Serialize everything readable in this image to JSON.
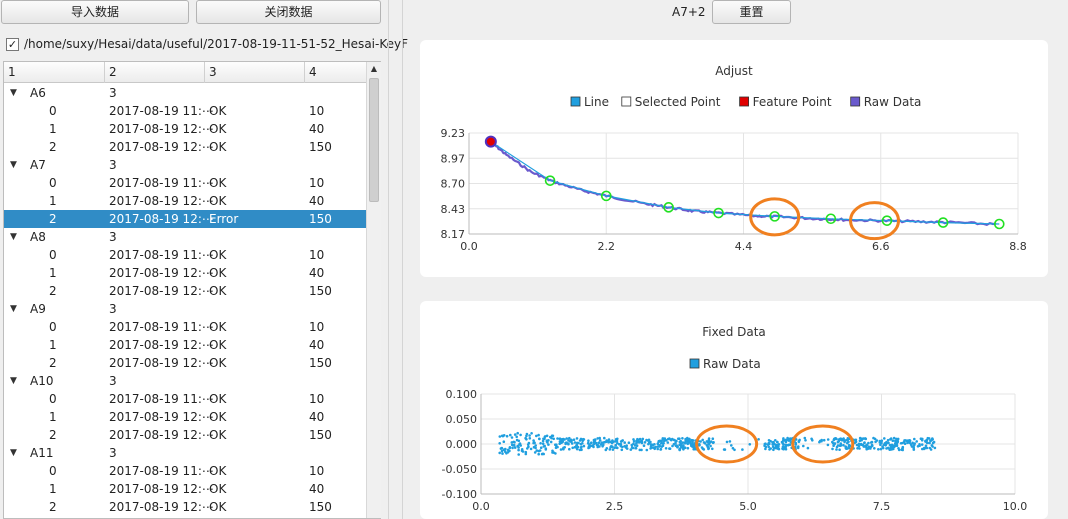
{
  "toolbar": {
    "import_label": "导入数据",
    "close_label": "关闭数据"
  },
  "file": {
    "checked_mark": "✓",
    "path": "/home/suxy/Hesai/data/useful/2017-08-19-11-51-52_Hesai-KeyF"
  },
  "tree": {
    "headers": [
      "1",
      "2",
      "3",
      "4"
    ],
    "rows": [
      {
        "level": 0,
        "c1": "A6",
        "c2": "3"
      },
      {
        "level": 1,
        "c1": "0",
        "c2": "2017-08-19 11:⋯",
        "c3": "OK",
        "c4": "10"
      },
      {
        "level": 1,
        "c1": "1",
        "c2": "2017-08-19 12:⋯",
        "c3": "OK",
        "c4": "40"
      },
      {
        "level": 1,
        "c1": "2",
        "c2": "2017-08-19 12:⋯",
        "c3": "OK",
        "c4": "150"
      },
      {
        "level": 0,
        "c1": "A7",
        "c2": "3"
      },
      {
        "level": 1,
        "c1": "0",
        "c2": "2017-08-19 11:⋯",
        "c3": "OK",
        "c4": "10"
      },
      {
        "level": 1,
        "c1": "1",
        "c2": "2017-08-19 12:⋯",
        "c3": "OK",
        "c4": "40"
      },
      {
        "level": 1,
        "c1": "2",
        "c2": "2017-08-19 12:⋯",
        "c3": "Error",
        "c4": "150",
        "selected": true
      },
      {
        "level": 0,
        "c1": "A8",
        "c2": "3"
      },
      {
        "level": 1,
        "c1": "0",
        "c2": "2017-08-19 11:⋯",
        "c3": "OK",
        "c4": "10"
      },
      {
        "level": 1,
        "c1": "1",
        "c2": "2017-08-19 12:⋯",
        "c3": "OK",
        "c4": "40"
      },
      {
        "level": 1,
        "c1": "2",
        "c2": "2017-08-19 12:⋯",
        "c3": "OK",
        "c4": "150"
      },
      {
        "level": 0,
        "c1": "A9",
        "c2": "3"
      },
      {
        "level": 1,
        "c1": "0",
        "c2": "2017-08-19 11:⋯",
        "c3": "OK",
        "c4": "10"
      },
      {
        "level": 1,
        "c1": "1",
        "c2": "2017-08-19 12:⋯",
        "c3": "OK",
        "c4": "40"
      },
      {
        "level": 1,
        "c1": "2",
        "c2": "2017-08-19 12:⋯",
        "c3": "OK",
        "c4": "150"
      },
      {
        "level": 0,
        "c1": "A10",
        "c2": "3"
      },
      {
        "level": 1,
        "c1": "0",
        "c2": "2017-08-19 11:⋯",
        "c3": "OK",
        "c4": "10"
      },
      {
        "level": 1,
        "c1": "1",
        "c2": "2017-08-19 12:⋯",
        "c3": "OK",
        "c4": "40"
      },
      {
        "level": 1,
        "c1": "2",
        "c2": "2017-08-19 12:⋯",
        "c3": "OK",
        "c4": "150"
      },
      {
        "level": 0,
        "c1": "A11",
        "c2": "3"
      },
      {
        "level": 1,
        "c1": "0",
        "c2": "2017-08-19 11:⋯",
        "c3": "OK",
        "c4": "10"
      },
      {
        "level": 1,
        "c1": "1",
        "c2": "2017-08-19 12:⋯",
        "c3": "OK",
        "c4": "40"
      },
      {
        "level": 1,
        "c1": "2",
        "c2": "2017-08-19 12:⋯",
        "c3": "OK",
        "c4": "150"
      }
    ]
  },
  "right": {
    "selection_label": "A7+2",
    "reset_label": "重置"
  },
  "chart_data": [
    {
      "type": "line",
      "title": "Adjust",
      "legend": [
        {
          "name": "Line",
          "color": "#209fdf"
        },
        {
          "name": "Selected Point",
          "color": "#ffffff"
        },
        {
          "name": "Feature Point",
          "color": "#e00000"
        },
        {
          "name": "Raw Data",
          "color": "#6a5acd"
        }
      ],
      "legend_position": "top",
      "xlim": [
        0.0,
        8.8
      ],
      "ylim": [
        8.17,
        9.23
      ],
      "xticks": [
        "0.0",
        "2.2",
        "4.4",
        "6.6",
        "8.8"
      ],
      "yticks": [
        "9.23",
        "8.97",
        "8.70",
        "8.43",
        "8.17"
      ],
      "grid": true,
      "raw_data_curve": {
        "x": [
          0.35,
          0.6,
          1.0,
          1.35,
          1.8,
          2.2,
          2.8,
          3.2,
          3.6,
          4.0,
          4.6,
          5.0,
          5.6,
          6.0,
          6.6,
          7.2,
          7.8,
          8.5
        ],
        "y": [
          9.14,
          9.0,
          8.82,
          8.72,
          8.63,
          8.57,
          8.49,
          8.45,
          8.41,
          8.39,
          8.36,
          8.35,
          8.33,
          8.32,
          8.31,
          8.3,
          8.29,
          8.27
        ]
      },
      "line": {
        "x": [
          0.35,
          1.3,
          2.2,
          3.2,
          4.0,
          4.9,
          5.8,
          6.7,
          7.6,
          8.5
        ],
        "y": [
          9.14,
          8.73,
          8.57,
          8.45,
          8.39,
          8.355,
          8.33,
          8.31,
          8.29,
          8.275
        ]
      },
      "selected_points": {
        "x": [
          1.3,
          2.2,
          3.2,
          4.0,
          4.9,
          5.8,
          6.7,
          7.6,
          8.5
        ],
        "y": [
          8.73,
          8.57,
          8.45,
          8.39,
          8.355,
          8.33,
          8.31,
          8.29,
          8.275
        ]
      },
      "feature_points": {
        "x": [
          0.35
        ],
        "y": [
          9.14
        ]
      },
      "annotations": [
        {
          "shape": "ellipse",
          "x": 4.9,
          "y": 8.35,
          "color": "#f08020"
        },
        {
          "shape": "ellipse",
          "x": 6.5,
          "y": 8.31,
          "color": "#f08020"
        }
      ]
    },
    {
      "type": "scatter",
      "title": "Fixed Data",
      "legend": [
        {
          "name": "Raw Data",
          "color": "#209fdf"
        }
      ],
      "legend_position": "top",
      "xlim": [
        0.0,
        10.0
      ],
      "ylim": [
        -0.1,
        0.1
      ],
      "xticks": [
        "0.0",
        "2.5",
        "5.0",
        "7.5",
        "10.0"
      ],
      "yticks": [
        "0.100",
        "0.050",
        "0.000",
        "-0.050",
        "-0.100"
      ],
      "grid": true,
      "x_range_of_points": [
        0.35,
        8.5
      ],
      "y_band": [
        -0.012,
        0.012
      ],
      "gaps": [
        [
          4.4,
          5.3
        ],
        [
          6.0,
          6.6
        ]
      ],
      "annotations": [
        {
          "shape": "ellipse",
          "x": 4.6,
          "y": 0.0,
          "color": "#f08020"
        },
        {
          "shape": "ellipse",
          "x": 6.4,
          "y": 0.0,
          "color": "#f08020"
        }
      ]
    }
  ]
}
